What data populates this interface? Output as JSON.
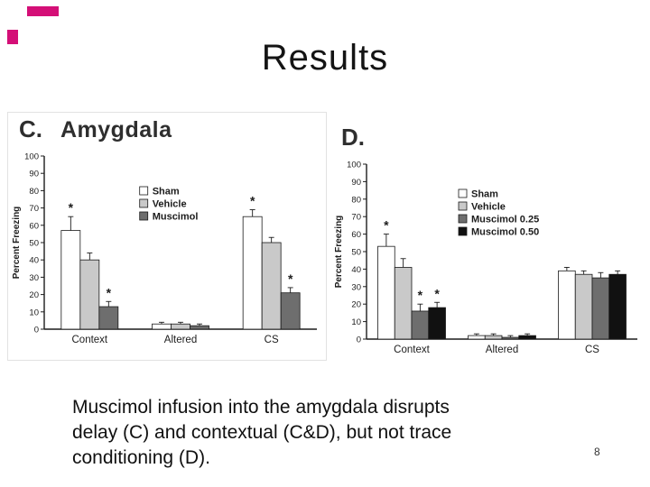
{
  "title": "Results",
  "page_number": "8",
  "accent_color": "#d40f77",
  "caption": {
    "lines": [
      "Muscimol infusion into the amygdala disrupts",
      "delay (C) and contextual (C&D), but not trace",
      "conditioning (D)."
    ]
  },
  "chart_data": [
    {
      "type": "bar",
      "panel_label": "C.",
      "title": "Amygdala",
      "ylabel": "Percent Freezing",
      "xlabel": "",
      "ylim": [
        0,
        100
      ],
      "ytick_step": 10,
      "grid": false,
      "legend_position": "inside-top-center",
      "legend_x": 0.35,
      "legend_y": 34,
      "categories": [
        "Context",
        "Altered",
        "CS"
      ],
      "series": [
        {
          "name": "Sham",
          "color": "#ffffff",
          "values": [
            57,
            3,
            65
          ],
          "errors": [
            8,
            1,
            4
          ]
        },
        {
          "name": "Vehicle",
          "color": "#c9c9c9",
          "values": [
            40,
            3,
            50
          ],
          "errors": [
            4,
            1,
            3
          ]
        },
        {
          "name": "Muscimol",
          "color": "#6e6e6e",
          "values": [
            13,
            2,
            21
          ],
          "errors": [
            3,
            1,
            3
          ]
        }
      ],
      "annotations": [
        {
          "category": "Context",
          "series": "Sham",
          "text": "*"
        },
        {
          "category": "Context",
          "series": "Muscimol",
          "text": "*"
        },
        {
          "category": "CS",
          "series": "Sham",
          "text": "*"
        },
        {
          "category": "CS",
          "series": "Muscimol",
          "text": "*"
        }
      ]
    },
    {
      "type": "bar",
      "panel_label": "D.",
      "title": "",
      "ylabel": "Percent Freezing",
      "xlabel": "",
      "ylim": [
        0,
        100
      ],
      "ytick_step": 10,
      "grid": false,
      "legend_position": "inside-top-center",
      "legend_x": 0.34,
      "legend_y": 28,
      "categories": [
        "Context",
        "Altered",
        "CS"
      ],
      "series": [
        {
          "name": "Sham",
          "color": "#ffffff",
          "values": [
            53,
            2,
            39
          ],
          "errors": [
            7,
            1,
            2
          ]
        },
        {
          "name": "Vehicle",
          "color": "#c9c9c9",
          "values": [
            41,
            2,
            37
          ],
          "errors": [
            5,
            1,
            2
          ]
        },
        {
          "name": "Muscimol 0.25",
          "color": "#6e6e6e",
          "values": [
            16,
            1,
            35
          ],
          "errors": [
            4,
            1,
            3
          ]
        },
        {
          "name": "Muscimol 0.50",
          "color": "#111111",
          "values": [
            18,
            2,
            37
          ],
          "errors": [
            3,
            1,
            2
          ]
        }
      ],
      "annotations": [
        {
          "category": "Context",
          "series": "Sham",
          "text": "*"
        },
        {
          "category": "Context",
          "series": "Muscimol 0.25",
          "text": "*"
        },
        {
          "category": "Context",
          "series": "Muscimol 0.50",
          "text": "*"
        }
      ]
    }
  ]
}
